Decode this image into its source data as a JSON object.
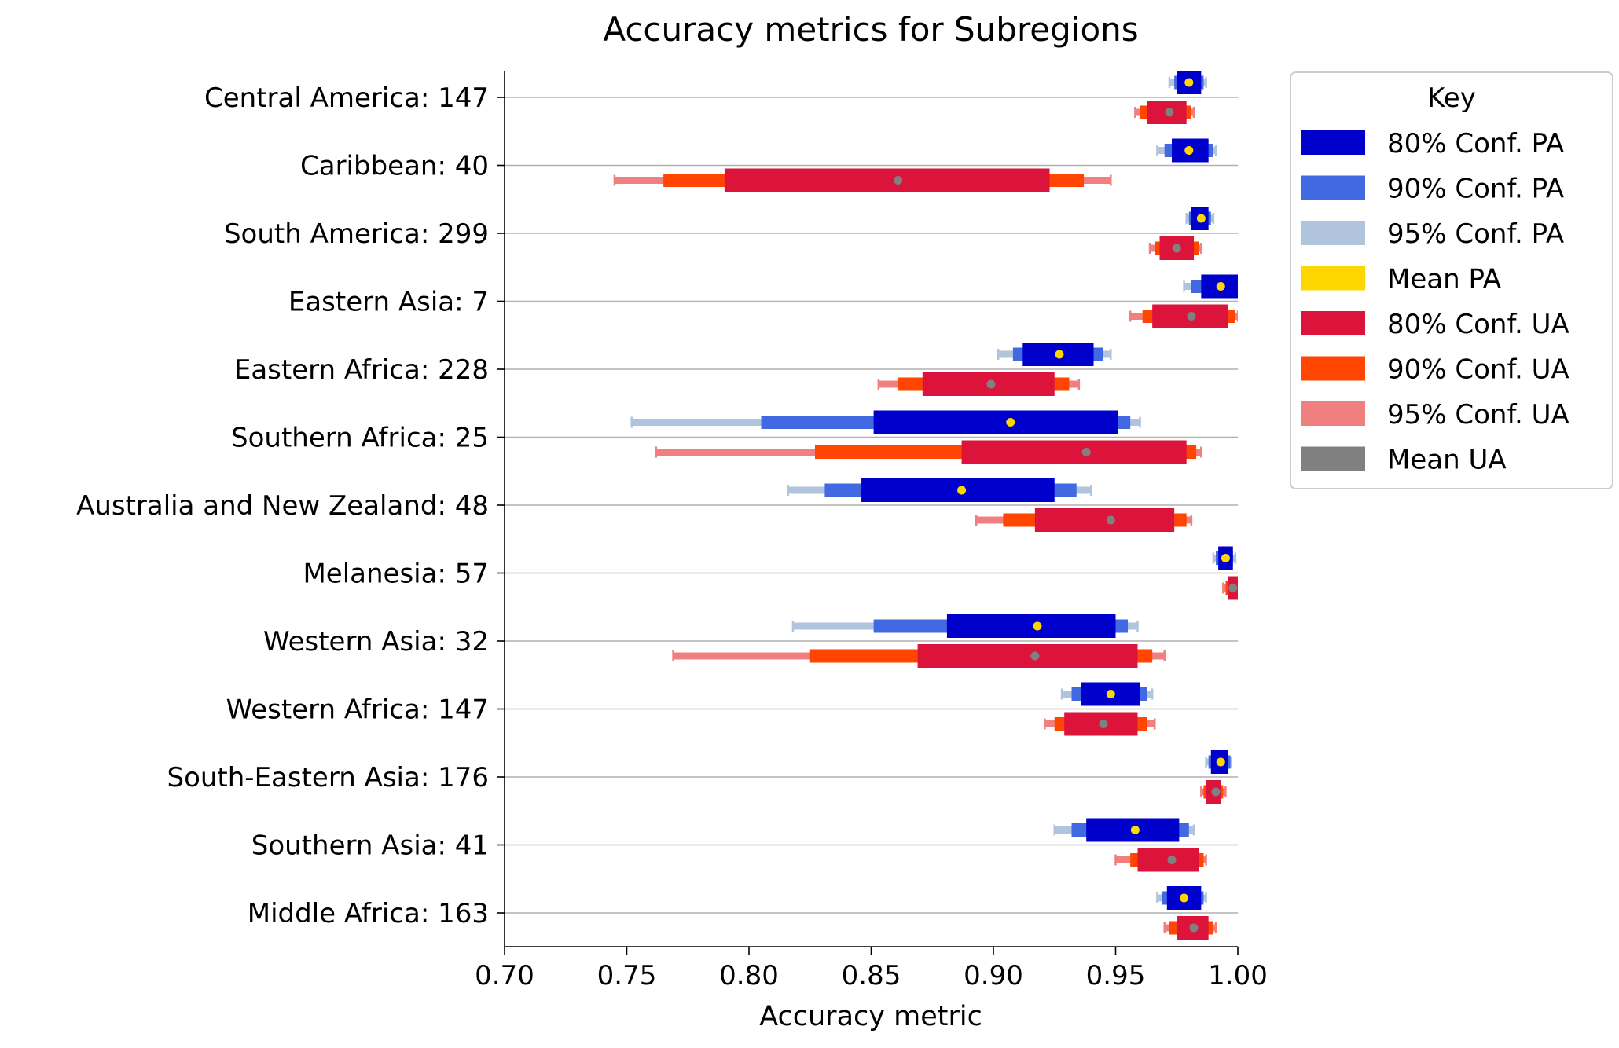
{
  "chart_data": {
    "type": "bar",
    "title": "Accuracy metrics for Subregions",
    "xlabel": "Accuracy metric",
    "ylabel": "",
    "xlim": [
      0.7,
      1.0
    ],
    "xticks": [
      "0.70",
      "0.75",
      "0.80",
      "0.85",
      "0.90",
      "0.95",
      "1.00"
    ],
    "grid": "horizontal lines at each category",
    "legend": {
      "title": "Key",
      "position": "outside right, top",
      "entries": [
        {
          "label": "80% Conf. PA",
          "color": "#0000CD"
        },
        {
          "label": "90% Conf. PA",
          "color": "#4169E1"
        },
        {
          "label": "95% Conf. PA",
          "color": "#B0C4DE"
        },
        {
          "label": "Mean PA",
          "color": "#FFD700"
        },
        {
          "label": "80% Conf. UA",
          "color": "#DC143C"
        },
        {
          "label": "90% Conf. UA",
          "color": "#FF4500"
        },
        {
          "label": "95% Conf. UA",
          "color": "#F08080"
        },
        {
          "label": "Mean UA",
          "color": "#808080"
        }
      ]
    },
    "categories": [
      "Central America: 147",
      "Caribbean: 40",
      "South America: 299",
      "Eastern Asia: 7",
      "Eastern Africa: 228",
      "Southern Africa: 25",
      "Australia and New Zealand: 48",
      "Melanesia: 57",
      "Western Asia: 32",
      "Western Africa: 147",
      "South-Eastern Asia: 176",
      "Southern Asia: 41",
      "Middle Africa: 163"
    ],
    "series": [
      {
        "name": "PA",
        "mean": [
          0.98,
          0.98,
          0.985,
          0.993,
          0.927,
          0.907,
          0.887,
          0.995,
          0.918,
          0.948,
          0.993,
          0.958,
          0.978
        ],
        "ci80": [
          [
            0.975,
            0.985
          ],
          [
            0.973,
            0.988
          ],
          [
            0.981,
            0.988
          ],
          [
            0.985,
            1.0
          ],
          [
            0.912,
            0.941
          ],
          [
            0.851,
            0.951
          ],
          [
            0.846,
            0.925
          ],
          [
            0.992,
            0.998
          ],
          [
            0.881,
            0.95
          ],
          [
            0.936,
            0.96
          ],
          [
            0.989,
            0.996
          ],
          [
            0.938,
            0.976
          ],
          [
            0.971,
            0.985
          ]
        ],
        "ci90": [
          [
            0.974,
            0.986
          ],
          [
            0.97,
            0.99
          ],
          [
            0.98,
            0.989
          ],
          [
            0.981,
            1.0
          ],
          [
            0.908,
            0.945
          ],
          [
            0.805,
            0.956
          ],
          [
            0.831,
            0.934
          ],
          [
            0.991,
            0.998
          ],
          [
            0.851,
            0.955
          ],
          [
            0.932,
            0.963
          ],
          [
            0.988,
            0.997
          ],
          [
            0.932,
            0.98
          ],
          [
            0.969,
            0.986
          ]
        ],
        "ci95": [
          [
            0.972,
            0.987
          ],
          [
            0.967,
            0.991
          ],
          [
            0.979,
            0.99
          ],
          [
            0.978,
            1.0
          ],
          [
            0.902,
            0.948
          ],
          [
            0.752,
            0.96
          ],
          [
            0.816,
            0.94
          ],
          [
            0.99,
            0.999
          ],
          [
            0.818,
            0.959
          ],
          [
            0.928,
            0.965
          ],
          [
            0.987,
            0.997
          ],
          [
            0.925,
            0.982
          ],
          [
            0.967,
            0.987
          ]
        ]
      },
      {
        "name": "UA",
        "mean": [
          0.972,
          0.861,
          0.975,
          0.981,
          0.899,
          0.938,
          0.948,
          0.998,
          0.917,
          0.945,
          0.991,
          0.973,
          0.982
        ],
        "ci80": [
          [
            0.963,
            0.979
          ],
          [
            0.79,
            0.923
          ],
          [
            0.968,
            0.982
          ],
          [
            0.965,
            0.996
          ],
          [
            0.871,
            0.925
          ],
          [
            0.887,
            0.979
          ],
          [
            0.917,
            0.974
          ],
          [
            0.996,
            1.0
          ],
          [
            0.869,
            0.959
          ],
          [
            0.929,
            0.959
          ],
          [
            0.987,
            0.993
          ],
          [
            0.959,
            0.984
          ],
          [
            0.975,
            0.988
          ]
        ],
        "ci90": [
          [
            0.96,
            0.981
          ],
          [
            0.765,
            0.937
          ],
          [
            0.966,
            0.984
          ],
          [
            0.961,
            0.999
          ],
          [
            0.861,
            0.931
          ],
          [
            0.827,
            0.983
          ],
          [
            0.904,
            0.979
          ],
          [
            0.995,
            1.0
          ],
          [
            0.825,
            0.965
          ],
          [
            0.925,
            0.963
          ],
          [
            0.986,
            0.994
          ],
          [
            0.956,
            0.986
          ],
          [
            0.972,
            0.99
          ]
        ],
        "ci95": [
          [
            0.958,
            0.982
          ],
          [
            0.745,
            0.948
          ],
          [
            0.964,
            0.985
          ],
          [
            0.956,
            1.0
          ],
          [
            0.853,
            0.935
          ],
          [
            0.762,
            0.985
          ],
          [
            0.893,
            0.981
          ],
          [
            0.994,
            1.0
          ],
          [
            0.769,
            0.97
          ],
          [
            0.921,
            0.966
          ],
          [
            0.985,
            0.995
          ],
          [
            0.95,
            0.987
          ],
          [
            0.97,
            0.991
          ]
        ]
      }
    ]
  }
}
